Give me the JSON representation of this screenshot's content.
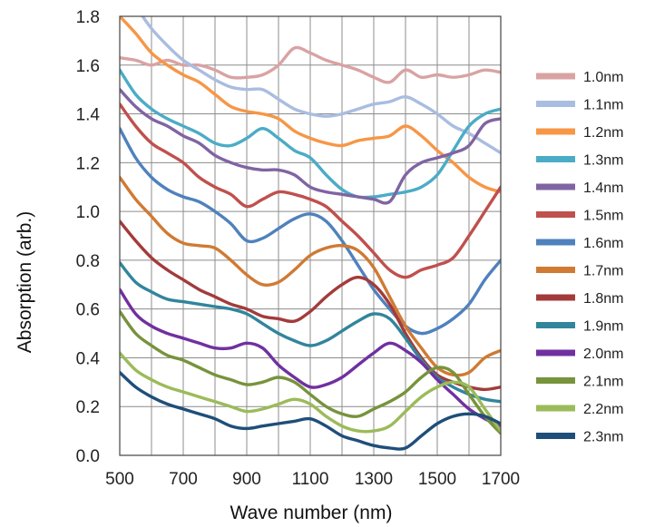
{
  "chart_data": {
    "type": "line",
    "xlabel": "Wave number (nm)",
    "ylabel": "Absorption (arb.)",
    "xlim": [
      500,
      1700
    ],
    "ylim": [
      0.0,
      1.8
    ],
    "x_ticks": [
      "500",
      "700",
      "900",
      "1100",
      "1300",
      "1500",
      "1700"
    ],
    "y_ticks": [
      "0.0",
      "0.2",
      "0.4",
      "0.6",
      "0.8",
      "1.0",
      "1.2",
      "1.4",
      "1.6",
      "1.8"
    ],
    "grid": true,
    "legend_position": "right",
    "x": [
      500,
      550,
      600,
      650,
      700,
      750,
      800,
      850,
      900,
      950,
      1000,
      1050,
      1100,
      1150,
      1200,
      1250,
      1300,
      1350,
      1400,
      1450,
      1500,
      1550,
      1600,
      1650,
      1700
    ],
    "series": [
      {
        "name": "1.0nm",
        "color": "#d9a3a3",
        "values": [
          1.63,
          1.62,
          1.6,
          1.62,
          1.6,
          1.6,
          1.58,
          1.55,
          1.55,
          1.56,
          1.6,
          1.67,
          1.65,
          1.62,
          1.6,
          1.58,
          1.55,
          1.53,
          1.58,
          1.55,
          1.56,
          1.55,
          1.56,
          1.58,
          1.57
        ]
      },
      {
        "name": "1.1nm",
        "color": "#a9bde0",
        "values": [
          1.92,
          1.84,
          1.75,
          1.68,
          1.62,
          1.58,
          1.54,
          1.51,
          1.5,
          1.5,
          1.46,
          1.42,
          1.4,
          1.39,
          1.4,
          1.42,
          1.44,
          1.45,
          1.47,
          1.44,
          1.4,
          1.35,
          1.32,
          1.28,
          1.24
        ]
      },
      {
        "name": "1.2nm",
        "color": "#f79646",
        "values": [
          1.8,
          1.73,
          1.65,
          1.6,
          1.56,
          1.53,
          1.48,
          1.43,
          1.41,
          1.4,
          1.38,
          1.33,
          1.3,
          1.28,
          1.27,
          1.29,
          1.3,
          1.31,
          1.35,
          1.31,
          1.25,
          1.2,
          1.14,
          1.1,
          1.08
        ]
      },
      {
        "name": "1.3nm",
        "color": "#4bacc6",
        "values": [
          1.58,
          1.48,
          1.42,
          1.38,
          1.35,
          1.32,
          1.28,
          1.27,
          1.3,
          1.34,
          1.3,
          1.25,
          1.22,
          1.15,
          1.09,
          1.06,
          1.06,
          1.07,
          1.08,
          1.1,
          1.15,
          1.25,
          1.35,
          1.4,
          1.42
        ]
      },
      {
        "name": "1.4nm",
        "color": "#8064a2",
        "values": [
          1.5,
          1.43,
          1.38,
          1.35,
          1.31,
          1.28,
          1.23,
          1.2,
          1.18,
          1.17,
          1.17,
          1.15,
          1.1,
          1.08,
          1.07,
          1.06,
          1.05,
          1.04,
          1.15,
          1.2,
          1.22,
          1.24,
          1.27,
          1.36,
          1.38
        ]
      },
      {
        "name": "1.5nm",
        "color": "#c0504d",
        "values": [
          1.44,
          1.35,
          1.28,
          1.24,
          1.2,
          1.14,
          1.1,
          1.07,
          1.02,
          1.05,
          1.08,
          1.07,
          1.05,
          1.02,
          0.96,
          0.9,
          0.83,
          0.76,
          0.73,
          0.76,
          0.78,
          0.81,
          0.9,
          1.0,
          1.1
        ]
      },
      {
        "name": "1.6nm",
        "color": "#4f81bd",
        "values": [
          1.34,
          1.22,
          1.14,
          1.09,
          1.06,
          1.04,
          1.0,
          0.95,
          0.88,
          0.89,
          0.93,
          0.97,
          0.99,
          0.96,
          0.88,
          0.78,
          0.68,
          0.6,
          0.53,
          0.5,
          0.52,
          0.56,
          0.62,
          0.72,
          0.8
        ]
      },
      {
        "name": "1.7nm",
        "color": "#d07a33",
        "values": [
          1.14,
          1.05,
          0.98,
          0.91,
          0.87,
          0.86,
          0.85,
          0.8,
          0.74,
          0.7,
          0.71,
          0.76,
          0.82,
          0.85,
          0.86,
          0.84,
          0.77,
          0.65,
          0.53,
          0.44,
          0.36,
          0.33,
          0.34,
          0.4,
          0.43
        ]
      },
      {
        "name": "1.8nm",
        "color": "#a33b3b",
        "values": [
          0.96,
          0.88,
          0.81,
          0.76,
          0.72,
          0.68,
          0.65,
          0.62,
          0.6,
          0.57,
          0.56,
          0.55,
          0.59,
          0.65,
          0.7,
          0.73,
          0.7,
          0.62,
          0.5,
          0.4,
          0.33,
          0.3,
          0.28,
          0.27,
          0.28
        ]
      },
      {
        "name": "1.9nm",
        "color": "#31859c",
        "values": [
          0.79,
          0.71,
          0.67,
          0.64,
          0.63,
          0.62,
          0.61,
          0.6,
          0.58,
          0.54,
          0.5,
          0.47,
          0.45,
          0.47,
          0.51,
          0.55,
          0.58,
          0.56,
          0.48,
          0.39,
          0.32,
          0.28,
          0.25,
          0.23,
          0.22
        ]
      },
      {
        "name": "2.0nm",
        "color": "#7030a0",
        "values": [
          0.68,
          0.58,
          0.53,
          0.5,
          0.48,
          0.46,
          0.44,
          0.44,
          0.46,
          0.44,
          0.37,
          0.32,
          0.28,
          0.29,
          0.32,
          0.37,
          0.42,
          0.46,
          0.43,
          0.38,
          0.31,
          0.25,
          0.19,
          0.15,
          0.12
        ]
      },
      {
        "name": "2.1nm",
        "color": "#77933c",
        "values": [
          0.59,
          0.5,
          0.45,
          0.41,
          0.39,
          0.36,
          0.33,
          0.31,
          0.29,
          0.3,
          0.32,
          0.3,
          0.25,
          0.2,
          0.17,
          0.16,
          0.19,
          0.22,
          0.26,
          0.32,
          0.36,
          0.34,
          0.25,
          0.16,
          0.09
        ]
      },
      {
        "name": "2.2nm",
        "color": "#9bbb59",
        "values": [
          0.42,
          0.35,
          0.31,
          0.28,
          0.26,
          0.24,
          0.22,
          0.2,
          0.18,
          0.19,
          0.21,
          0.23,
          0.21,
          0.16,
          0.12,
          0.1,
          0.1,
          0.12,
          0.18,
          0.24,
          0.28,
          0.3,
          0.28,
          0.19,
          0.1
        ]
      },
      {
        "name": "2.3nm",
        "color": "#1f4e79",
        "values": [
          0.34,
          0.28,
          0.24,
          0.21,
          0.19,
          0.17,
          0.15,
          0.12,
          0.11,
          0.12,
          0.13,
          0.14,
          0.15,
          0.12,
          0.08,
          0.06,
          0.04,
          0.03,
          0.03,
          0.08,
          0.13,
          0.16,
          0.17,
          0.16,
          0.13
        ]
      }
    ]
  }
}
